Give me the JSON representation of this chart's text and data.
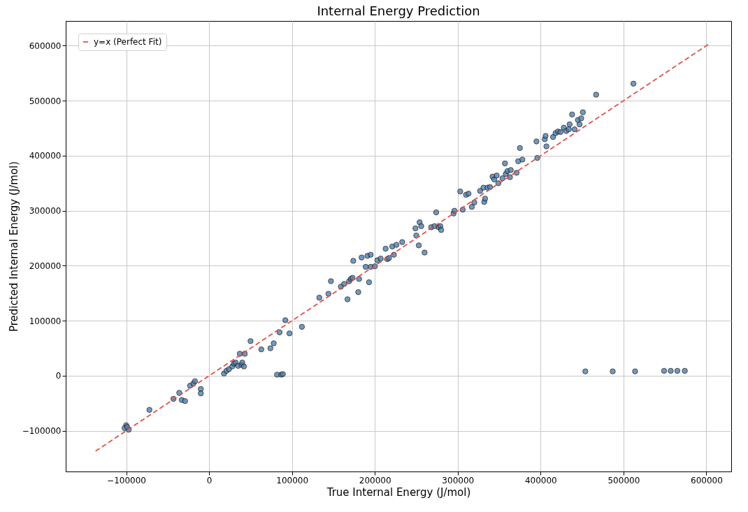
{
  "chart_data": {
    "type": "scatter",
    "title": "Internal Energy Prediction",
    "xlabel": "True Internal Energy (J/mol)",
    "ylabel": "Predicted Internal Energy (J/mol)",
    "xlim": [
      -173000,
      630000
    ],
    "ylim": [
      -174000,
      645000
    ],
    "xticks": [
      -100000,
      0,
      100000,
      200000,
      300000,
      400000,
      500000,
      600000
    ],
    "yticks": [
      -100000,
      0,
      100000,
      200000,
      300000,
      400000,
      500000,
      600000
    ],
    "grid": true,
    "legend": "top left",
    "marker": "circle",
    "series": [
      {
        "color": "#4f7fb0",
        "x": [
          -100000,
          -102000,
          -97000,
          -99000,
          -72000,
          -43000,
          -36000,
          -33000,
          -29000,
          -23000,
          -19000,
          -17000,
          -10000,
          -10000,
          18000,
          21000,
          24000,
          28000,
          30000,
          32000,
          35000,
          37000,
          39000,
          40000,
          42000,
          43000,
          50000,
          63000,
          74000,
          78000,
          85000,
          92000,
          97000,
          112000,
          82000,
          87000,
          89000,
          133000,
          144000,
          147000,
          159000,
          163000,
          167000,
          169000,
          171000,
          173000,
          174000,
          180000,
          181000,
          184000,
          189000,
          191000,
          193000,
          195000,
          195000,
          200000,
          203000,
          207000,
          213000,
          215000,
          217000,
          221000,
          223000,
          226000,
          233000,
          249000,
          250000,
          253000,
          254000,
          256000,
          260000,
          268000,
          272000,
          274000,
          277000,
          279000,
          280000,
          295000,
          296000,
          303000,
          306000,
          310000,
          313000,
          317000,
          320000,
          327000,
          331000,
          332000,
          333000,
          336000,
          339000,
          342000,
          344000,
          347000,
          349000,
          354000,
          357000,
          358000,
          360000,
          363000,
          364000,
          371000,
          373000,
          375000,
          378000,
          395000,
          396000,
          405000,
          406000,
          407000,
          415000,
          418000,
          421000,
          424000,
          428000,
          431000,
          434000,
          435000,
          438000,
          441000,
          445000,
          447000,
          449000,
          451000,
          467000,
          512000,
          454000,
          487000,
          514000,
          549000,
          557000,
          565000,
          574000
        ],
        "values": [
          -90000,
          -95000,
          -98000,
          -93000,
          -62000,
          -42000,
          -31000,
          -44000,
          -46000,
          -18000,
          -14000,
          -10000,
          -24000,
          -32000,
          4000,
          9000,
          12000,
          17000,
          22000,
          24000,
          18000,
          40000,
          20000,
          24000,
          17000,
          40000,
          63000,
          48000,
          50000,
          59000,
          79000,
          101000,
          77000,
          89000,
          2000,
          2000,
          3000,
          142000,
          149000,
          172000,
          162000,
          167000,
          139000,
          172000,
          176000,
          178000,
          209000,
          152000,
          176000,
          215000,
          198000,
          218000,
          170000,
          220000,
          198000,
          199000,
          210000,
          213000,
          231000,
          212000,
          214000,
          235000,
          220000,
          238000,
          243000,
          268000,
          255000,
          237000,
          279000,
          272000,
          224000,
          270000,
          272000,
          297000,
          270000,
          272000,
          265000,
          295000,
          300000,
          335000,
          302000,
          329000,
          331000,
          307000,
          315000,
          336000,
          342000,
          316000,
          322000,
          342000,
          343000,
          362000,
          357000,
          364000,
          350000,
          359000,
          386000,
          367000,
          372000,
          361000,
          374000,
          369000,
          390000,
          414000,
          393000,
          426000,
          396000,
          430000,
          436000,
          417000,
          434000,
          441000,
          444000,
          443000,
          451000,
          445000,
          448000,
          457000,
          475000,
          448000,
          465000,
          457000,
          468000,
          479000,
          511000,
          531000,
          8000,
          8000,
          8000,
          9000,
          9000,
          9000,
          9000
        ]
      },
      {
        "type": "line",
        "name": "y=x (Perfect Fit)",
        "color": "#e0524a",
        "line_style": "dashed",
        "marker": "none",
        "x": [
          -137000,
          605000
        ],
        "values": [
          -137000,
          605000
        ]
      }
    ]
  }
}
